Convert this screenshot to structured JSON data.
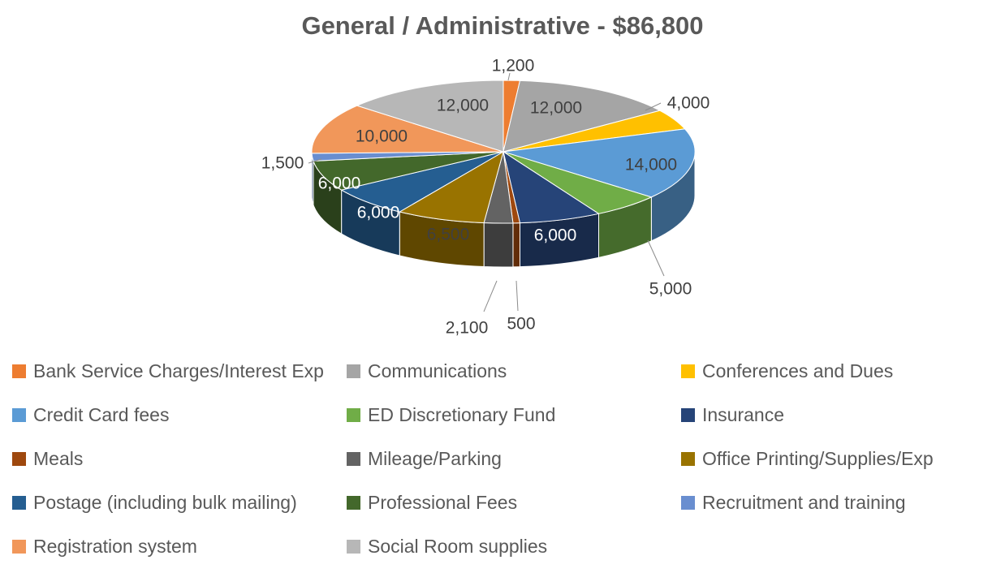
{
  "chart_data": {
    "type": "pie",
    "title": "General / Administrative - $86,800",
    "slices": [
      {
        "name": "Bank Service Charges/Interest Exp",
        "value": 1200,
        "label": "1,200",
        "color": "#ED7D31"
      },
      {
        "name": "Communications",
        "value": 12000,
        "label": "12,000",
        "color": "#A5A5A5"
      },
      {
        "name": "Conferences and Dues",
        "value": 4000,
        "label": "4,000",
        "color": "#FFC000"
      },
      {
        "name": "Credit Card fees",
        "value": 14000,
        "label": "14,000",
        "color": "#5B9BD5"
      },
      {
        "name": "ED Discretionary Fund",
        "value": 5000,
        "label": "5,000",
        "color": "#70AD47"
      },
      {
        "name": "Insurance",
        "value": 6000,
        "label": "6,000",
        "color": "#264478"
      },
      {
        "name": "Meals",
        "value": 500,
        "label": "500",
        "color": "#9E480E"
      },
      {
        "name": "Mileage/Parking",
        "value": 2100,
        "label": "2,100",
        "color": "#636363"
      },
      {
        "name": "Office Printing/Supplies/Exp",
        "value": 6500,
        "label": "6,500",
        "color": "#997300"
      },
      {
        "name": "Postage (including bulk mailing)",
        "value": 6000,
        "label": "6,000",
        "color": "#255E91"
      },
      {
        "name": "Professional Fees",
        "value": 6000,
        "label": "6,000",
        "color": "#43682B"
      },
      {
        "name": "Recruitment and training",
        "value": 1500,
        "label": "1,500",
        "color": "#698ED0"
      },
      {
        "name": "Registration system",
        "value": 10000,
        "label": "10,000",
        "color": "#F1975A"
      },
      {
        "name": "Social Room supplies",
        "value": 12000,
        "label": "12,000",
        "color": "#B7B7B7"
      }
    ],
    "legend_position": "bottom"
  }
}
